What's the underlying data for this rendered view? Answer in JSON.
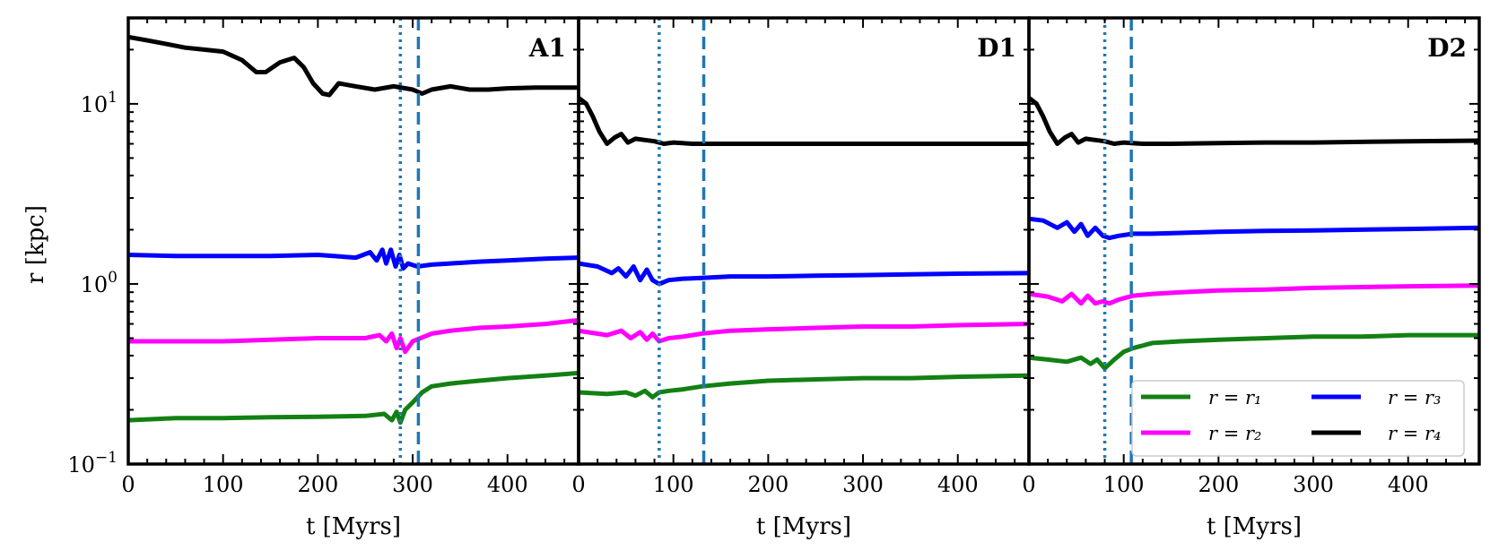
{
  "chart_data": {
    "type": "line",
    "yscale": "log",
    "ylim": [
      0.1,
      30
    ],
    "xlim": [
      0,
      475
    ],
    "ylabel": "r [kpc]",
    "y_ticks": [
      {
        "value": 0.1,
        "base": "10",
        "exp": "−1"
      },
      {
        "value": 1,
        "base": "10",
        "exp": "0"
      },
      {
        "value": 10,
        "base": "10",
        "exp": "1"
      }
    ],
    "legend": {
      "location": "lower-right of panel D2",
      "entries": [
        {
          "series": "r1",
          "label": "r = r₁",
          "color": "#138013"
        },
        {
          "series": "r2",
          "label": "r = r₂",
          "color": "#ff00ff"
        },
        {
          "series": "r3",
          "label": "r = r₃",
          "color": "#0000ff"
        },
        {
          "series": "r4",
          "label": "r = r₄",
          "color": "#000000"
        }
      ]
    },
    "vline_color": "#1f77b4",
    "panels": [
      {
        "label": "A1",
        "xlabel": "t [Myrs]",
        "x_ticks": [
          0,
          100,
          200,
          300,
          400
        ],
        "vlines": [
          {
            "x": 287,
            "style": "dotted"
          },
          {
            "x": 306,
            "style": "dashed"
          }
        ],
        "series": [
          {
            "name": "r4",
            "color": "#000000",
            "x": [
              0,
              20,
              40,
              60,
              80,
              100,
              120,
              135,
              145,
              160,
              175,
              185,
              195,
              205,
              212,
              222,
              240,
              260,
              280,
              300,
              310,
              320,
              340,
              360,
              380,
              400,
              430,
              460,
              475
            ],
            "y": [
              23.5,
              22.5,
              21.5,
              20.5,
              20,
              19.5,
              17.5,
              15,
              15,
              17,
              18,
              16,
              13,
              11.4,
              11.2,
              13,
              12.5,
              12,
              12.5,
              12,
              11.4,
              12,
              12.5,
              12,
              12,
              12.2,
              12.3,
              12.3,
              12.3
            ]
          },
          {
            "name": "r3",
            "color": "#0000ff",
            "x": [
              0,
              50,
              100,
              150,
              200,
              240,
              255,
              262,
              268,
              272,
              277,
              282,
              286,
              290,
              295,
              305,
              320,
              340,
              370,
              400,
              440,
              475
            ],
            "y": [
              1.45,
              1.43,
              1.43,
              1.43,
              1.45,
              1.4,
              1.5,
              1.35,
              1.55,
              1.3,
              1.55,
              1.25,
              1.45,
              1.22,
              1.3,
              1.25,
              1.28,
              1.3,
              1.33,
              1.35,
              1.38,
              1.4
            ]
          },
          {
            "name": "r2",
            "color": "#ff00ff",
            "x": [
              0,
              50,
              100,
              150,
              200,
              250,
              265,
              272,
              278,
              283,
              287,
              292,
              300,
              320,
              340,
              370,
              400,
              440,
              475
            ],
            "y": [
              0.48,
              0.48,
              0.48,
              0.49,
              0.5,
              0.5,
              0.52,
              0.48,
              0.53,
              0.44,
              0.5,
              0.42,
              0.48,
              0.53,
              0.55,
              0.57,
              0.58,
              0.6,
              0.63
            ]
          },
          {
            "name": "r1",
            "color": "#138013",
            "x": [
              0,
              50,
              100,
              150,
              200,
              250,
              270,
              278,
              283,
              287,
              292,
              300,
              310,
              320,
              340,
              370,
              400,
              440,
              475
            ],
            "y": [
              0.175,
              0.18,
              0.18,
              0.182,
              0.183,
              0.185,
              0.19,
              0.175,
              0.195,
              0.17,
              0.2,
              0.22,
              0.25,
              0.27,
              0.28,
              0.29,
              0.3,
              0.31,
              0.32
            ]
          }
        ]
      },
      {
        "label": "D1",
        "xlabel": "t [Myrs]",
        "x_ticks": [
          0,
          100,
          200,
          300,
          400
        ],
        "vlines": [
          {
            "x": 85,
            "style": "dotted"
          },
          {
            "x": 132,
            "style": "dashed"
          }
        ],
        "series": [
          {
            "name": "r4",
            "color": "#000000",
            "x": [
              0,
              8,
              15,
              22,
              30,
              38,
              45,
              52,
              60,
              70,
              80,
              90,
              100,
              120,
              150,
              200,
              250,
              300,
              350,
              400,
              475
            ],
            "y": [
              10.8,
              10,
              8.5,
              7,
              6,
              6.5,
              6.8,
              6.1,
              6.4,
              6.3,
              6.2,
              6.0,
              6.1,
              6.0,
              6.0,
              6.0,
              6.0,
              6.0,
              6.0,
              6.0,
              6.0
            ]
          },
          {
            "name": "r3",
            "color": "#0000ff",
            "x": [
              0,
              20,
              35,
              42,
              50,
              58,
              65,
              72,
              78,
              85,
              95,
              110,
              130,
              160,
              200,
              250,
              300,
              350,
              400,
              475
            ],
            "y": [
              1.3,
              1.25,
              1.15,
              1.22,
              1.1,
              1.25,
              1.05,
              1.2,
              1.05,
              1.0,
              1.05,
              1.07,
              1.08,
              1.1,
              1.1,
              1.11,
              1.12,
              1.13,
              1.14,
              1.15
            ]
          },
          {
            "name": "r2",
            "color": "#ff00ff",
            "x": [
              0,
              30,
              45,
              55,
              65,
              72,
              78,
              85,
              95,
              110,
              130,
              160,
              200,
              250,
              300,
              350,
              400,
              475
            ],
            "y": [
              0.55,
              0.52,
              0.55,
              0.5,
              0.54,
              0.49,
              0.53,
              0.48,
              0.5,
              0.51,
              0.53,
              0.55,
              0.56,
              0.57,
              0.58,
              0.58,
              0.59,
              0.6
            ]
          },
          {
            "name": "r1",
            "color": "#138013",
            "x": [
              0,
              30,
              50,
              60,
              70,
              78,
              85,
              95,
              110,
              130,
              160,
              200,
              250,
              300,
              350,
              400,
              475
            ],
            "y": [
              0.25,
              0.245,
              0.25,
              0.24,
              0.255,
              0.235,
              0.25,
              0.255,
              0.26,
              0.27,
              0.28,
              0.29,
              0.295,
              0.3,
              0.3,
              0.305,
              0.31
            ]
          }
        ]
      },
      {
        "label": "D2",
        "xlabel": "t [Myrs]",
        "x_ticks": [
          0,
          100,
          200,
          300,
          400
        ],
        "vlines": [
          {
            "x": 80,
            "style": "dotted"
          },
          {
            "x": 108,
            "style": "dashed"
          }
        ],
        "series": [
          {
            "name": "r4",
            "color": "#000000",
            "x": [
              0,
              8,
              15,
              22,
              30,
              38,
              45,
              52,
              60,
              70,
              80,
              90,
              100,
              120,
              150,
              200,
              250,
              300,
              350,
              400,
              475
            ],
            "y": [
              10.8,
              10,
              8.5,
              7,
              6,
              6.5,
              6.8,
              6.1,
              6.4,
              6.3,
              6.2,
              6.0,
              6.1,
              6.0,
              6.0,
              6.05,
              6.1,
              6.1,
              6.15,
              6.2,
              6.25
            ]
          },
          {
            "name": "r3",
            "color": "#0000ff",
            "x": [
              0,
              15,
              30,
              40,
              48,
              55,
              62,
              70,
              78,
              85,
              95,
              110,
              130,
              160,
              200,
              250,
              300,
              350,
              400,
              475
            ],
            "y": [
              2.3,
              2.25,
              2.05,
              2.2,
              1.95,
              2.15,
              1.85,
              2.05,
              1.85,
              1.8,
              1.85,
              1.9,
              1.9,
              1.92,
              1.95,
              1.97,
              1.98,
              2.0,
              2.02,
              2.05
            ]
          },
          {
            "name": "r2",
            "color": "#ff00ff",
            "x": [
              0,
              20,
              35,
              45,
              55,
              62,
              70,
              78,
              85,
              95,
              110,
              130,
              160,
              200,
              250,
              300,
              350,
              400,
              475
            ],
            "y": [
              0.88,
              0.85,
              0.8,
              0.88,
              0.78,
              0.86,
              0.78,
              0.8,
              0.78,
              0.82,
              0.86,
              0.88,
              0.9,
              0.92,
              0.93,
              0.95,
              0.96,
              0.97,
              0.98
            ]
          },
          {
            "name": "r1",
            "color": "#138013",
            "x": [
              0,
              20,
              40,
              55,
              65,
              72,
              80,
              90,
              100,
              110,
              130,
              160,
              200,
              250,
              300,
              350,
              400,
              475
            ],
            "y": [
              0.39,
              0.38,
              0.37,
              0.39,
              0.36,
              0.38,
              0.34,
              0.38,
              0.42,
              0.44,
              0.47,
              0.48,
              0.49,
              0.5,
              0.51,
              0.51,
              0.52,
              0.52
            ]
          }
        ]
      }
    ]
  }
}
